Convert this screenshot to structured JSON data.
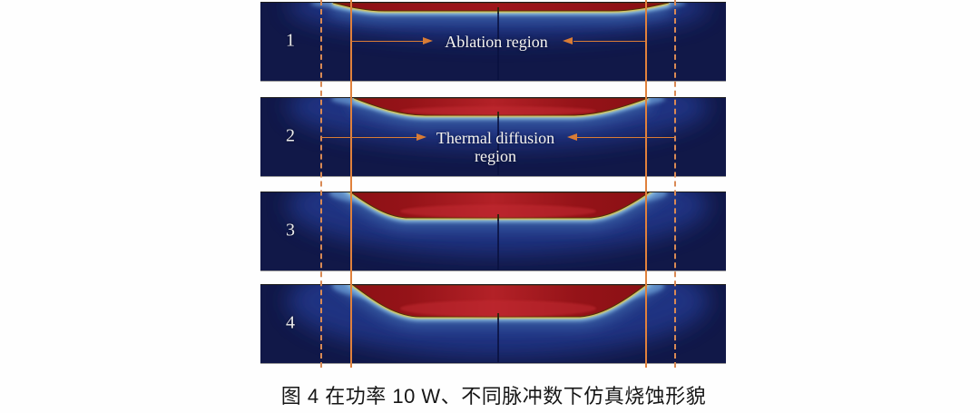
{
  "figure": {
    "panels": [
      {
        "label": "1"
      },
      {
        "label": "2"
      },
      {
        "label": "3"
      },
      {
        "label": "4"
      }
    ],
    "annotations": {
      "ablation_label": "Ablation region",
      "thermal_label_line1": "Thermal diffusion",
      "thermal_label_line2": "region"
    },
    "caption": "图 4 在功率 10 W、不同脉冲数下仿真烧蚀形貌",
    "colors": {
      "substrate_navy": "#111848",
      "ablation_red": "#951318",
      "ablation_red_bright": "#b32127",
      "melt_edge_yellow": "#ecc937",
      "heat_halo_blue": "#8fc3e8",
      "annotation_orange": "#d97c35",
      "panel_label_white": "#ececec",
      "caption_black": "#161616"
    }
  }
}
